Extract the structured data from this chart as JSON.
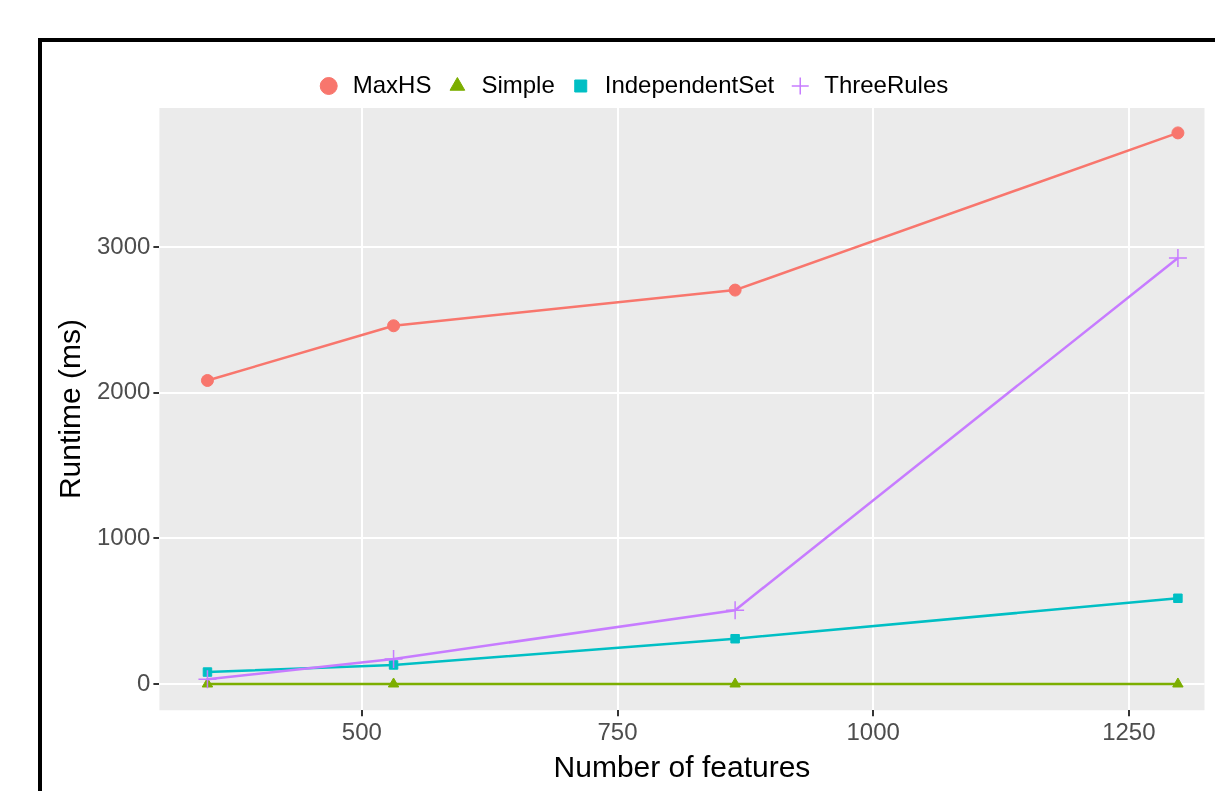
{
  "chart_data": {
    "type": "line",
    "xlabel": "Number of features",
    "ylabel": "Runtime (ms)",
    "x": [
      349,
      531,
      865,
      1298
    ],
    "series": [
      {
        "name": "MaxHS",
        "color": "#f8766d",
        "marker": "circle",
        "values": [
          2085,
          2461,
          2706,
          3786
        ]
      },
      {
        "name": "Simple",
        "color": "#7cae00",
        "marker": "triangle",
        "values": [
          0,
          0,
          0,
          0
        ]
      },
      {
        "name": "IndependentSet",
        "color": "#00bfc4",
        "marker": "square",
        "values": [
          82,
          131,
          311,
          589
        ]
      },
      {
        "name": "ThreeRules",
        "color": "#c77cff",
        "marker": "cross",
        "values": [
          33,
          172,
          507,
          2927
        ]
      }
    ],
    "xlim": [
      302,
      1324
    ],
    "xticks": [
      500,
      750,
      1000,
      1250
    ],
    "ylim": [
      -180,
      3957
    ],
    "yticks": [
      0,
      1000,
      2000,
      3000
    ],
    "grid": true,
    "legend": "top",
    "line_style": "solid"
  }
}
